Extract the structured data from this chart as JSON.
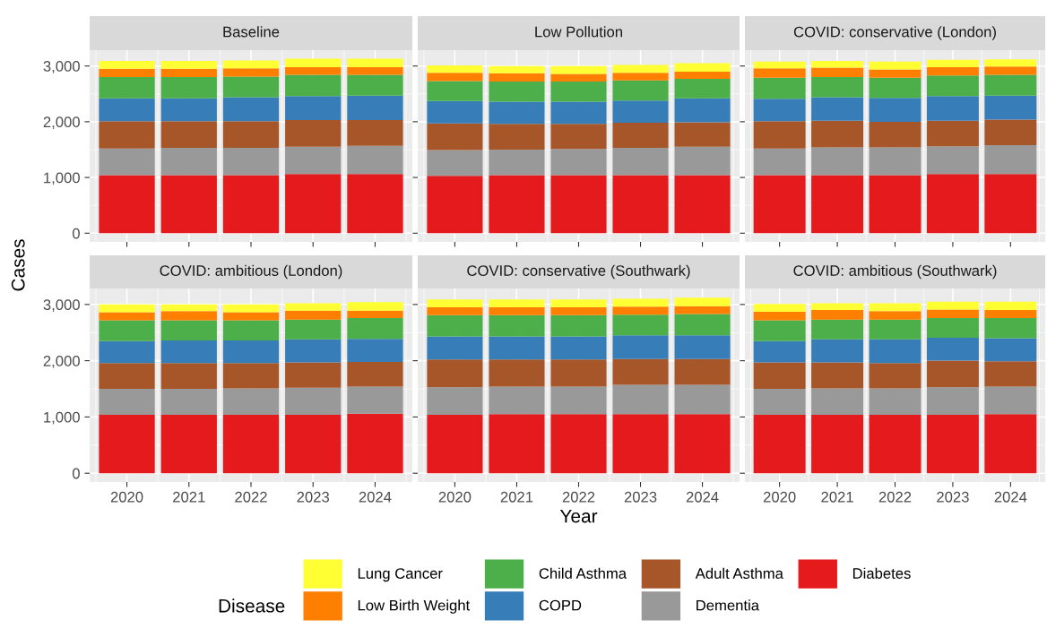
{
  "chart_data": [
    {
      "type": "bar",
      "title": "Baseline",
      "ylabel": "Cases",
      "legend": "bottom",
      "legend_title": "Disease",
      "stacked": true,
      "grid": true,
      "tick_labels": "y",
      "categories": [
        "2020",
        "2021",
        "2022",
        "2023",
        "2024"
      ],
      "ylim": [
        -156,
        3284
      ],
      "yticks": [
        {
          "value": 0,
          "label": "0"
        },
        {
          "value": 1000,
          "label": "1,000"
        },
        {
          "value": 2000,
          "label": "2,000"
        },
        {
          "value": 3000,
          "label": "3,000"
        }
      ],
      "series": [
        {
          "name": "Diabetes",
          "color": "#e41a1c",
          "values": [
            1040,
            1040,
            1040,
            1060,
            1060
          ]
        },
        {
          "name": "Dementia",
          "color": "#999999",
          "values": [
            480,
            490,
            490,
            490,
            510
          ]
        },
        {
          "name": "Adult Asthma",
          "color": "#a65628",
          "values": [
            490,
            480,
            480,
            480,
            460
          ]
        },
        {
          "name": "COPD",
          "color": "#377eb8",
          "values": [
            410,
            410,
            430,
            430,
            440
          ]
        },
        {
          "name": "Child Asthma",
          "color": "#4daf4a",
          "values": [
            380,
            380,
            370,
            380,
            370
          ]
        },
        {
          "name": "Low Birth Weight",
          "color": "#ff7f00",
          "values": [
            150,
            150,
            150,
            140,
            140
          ]
        },
        {
          "name": "Lung Cancer",
          "color": "#ffff33",
          "values": [
            140,
            140,
            140,
            150,
            150
          ]
        }
      ]
    },
    {
      "type": "bar",
      "title": "Low Pollution",
      "stacked": true,
      "grid": true,
      "tick_labels": false,
      "categories": [
        "2020",
        "2021",
        "2022",
        "2023",
        "2024"
      ],
      "ylim": [
        -156,
        3284
      ],
      "yticks": [
        {
          "value": 0,
          "label": null
        },
        {
          "value": 1000,
          "label": null
        },
        {
          "value": 2000,
          "label": null
        },
        {
          "value": 3000,
          "label": null
        }
      ],
      "series": [
        {
          "color": "#e41a1c",
          "values": [
            1030,
            1040,
            1040,
            1040,
            1040
          ]
        },
        {
          "color": "#999999",
          "values": [
            460,
            460,
            470,
            490,
            510
          ]
        },
        {
          "color": "#a65628",
          "values": [
            480,
            460,
            450,
            450,
            440
          ]
        },
        {
          "color": "#377eb8",
          "values": [
            400,
            400,
            400,
            400,
            430
          ]
        },
        {
          "color": "#4daf4a",
          "values": [
            360,
            360,
            360,
            360,
            350
          ]
        },
        {
          "color": "#ff7f00",
          "values": [
            150,
            150,
            140,
            140,
            130
          ]
        },
        {
          "color": "#ffff33",
          "values": [
            130,
            130,
            140,
            140,
            150
          ]
        }
      ]
    },
    {
      "type": "bar",
      "title": "COVID: conservative (London)",
      "stacked": true,
      "grid": true,
      "tick_labels": false,
      "categories": [
        "2020",
        "2021",
        "2022",
        "2023",
        "2024"
      ],
      "ylim": [
        -156,
        3284
      ],
      "yticks": [
        {
          "value": 0,
          "label": null
        },
        {
          "value": 1000,
          "label": null
        },
        {
          "value": 2000,
          "label": null
        },
        {
          "value": 3000,
          "label": null
        }
      ],
      "series": [
        {
          "color": "#e41a1c",
          "values": [
            1040,
            1040,
            1040,
            1060,
            1060
          ]
        },
        {
          "color": "#999999",
          "values": [
            480,
            500,
            500,
            500,
            520
          ]
        },
        {
          "color": "#a65628",
          "values": [
            490,
            480,
            460,
            460,
            460
          ]
        },
        {
          "color": "#377eb8",
          "values": [
            400,
            420,
            430,
            440,
            430
          ]
        },
        {
          "color": "#4daf4a",
          "values": [
            380,
            360,
            360,
            370,
            370
          ]
        },
        {
          "color": "#ff7f00",
          "values": [
            170,
            170,
            150,
            150,
            150
          ]
        },
        {
          "color": "#ffff33",
          "values": [
            120,
            120,
            140,
            130,
            130
          ]
        }
      ]
    },
    {
      "type": "bar",
      "title": "COVID: ambitious (London)",
      "stacked": true,
      "grid": true,
      "categories": [
        "2020",
        "2021",
        "2022",
        "2023",
        "2024"
      ],
      "ylim": [
        -156,
        3284
      ],
      "yticks": [
        {
          "value": 0,
          "label": "0"
        },
        {
          "value": 1000,
          "label": "1,000"
        },
        {
          "value": 2000,
          "label": "2,000"
        },
        {
          "value": 3000,
          "label": "3,000"
        }
      ],
      "series": [
        {
          "color": "#e41a1c",
          "values": [
            1040,
            1040,
            1040,
            1040,
            1060
          ]
        },
        {
          "color": "#999999",
          "values": [
            460,
            460,
            470,
            480,
            480
          ]
        },
        {
          "color": "#a65628",
          "values": [
            460,
            460,
            450,
            450,
            440
          ]
        },
        {
          "color": "#377eb8",
          "values": [
            390,
            400,
            400,
            410,
            410
          ]
        },
        {
          "color": "#4daf4a",
          "values": [
            370,
            360,
            360,
            350,
            370
          ]
        },
        {
          "color": "#ff7f00",
          "values": [
            140,
            160,
            140,
            160,
            130
          ]
        },
        {
          "color": "#ffff33",
          "values": [
            140,
            120,
            140,
            130,
            150
          ]
        }
      ]
    },
    {
      "type": "bar",
      "title": "COVID: conservative (Southwark)",
      "xlabel": "Year",
      "stacked": true,
      "grid": true,
      "tick_labels": "x",
      "categories": [
        "2020",
        "2021",
        "2022",
        "2023",
        "2024"
      ],
      "ylim": [
        -156,
        3284
      ],
      "yticks": [
        {
          "value": 0,
          "label": null
        },
        {
          "value": 1000,
          "label": null
        },
        {
          "value": 2000,
          "label": null
        },
        {
          "value": 3000,
          "label": null
        }
      ],
      "series": [
        {
          "color": "#e41a1c",
          "values": [
            1040,
            1050,
            1050,
            1050,
            1050
          ]
        },
        {
          "color": "#999999",
          "values": [
            490,
            490,
            490,
            520,
            520
          ]
        },
        {
          "color": "#a65628",
          "values": [
            490,
            480,
            480,
            460,
            460
          ]
        },
        {
          "color": "#377eb8",
          "values": [
            410,
            410,
            410,
            420,
            420
          ]
        },
        {
          "color": "#4daf4a",
          "values": [
            380,
            380,
            380,
            370,
            380
          ]
        },
        {
          "color": "#ff7f00",
          "values": [
            140,
            140,
            140,
            140,
            140
          ]
        },
        {
          "color": "#ffff33",
          "values": [
            140,
            140,
            140,
            140,
            150
          ]
        }
      ]
    },
    {
      "type": "bar",
      "title": "COVID: ambitious (Southwark)",
      "stacked": true,
      "grid": true,
      "tick_labels": "x",
      "categories": [
        "2020",
        "2021",
        "2022",
        "2023",
        "2024"
      ],
      "ylim": [
        -156,
        3284
      ],
      "yticks": [
        {
          "value": 0,
          "label": null
        },
        {
          "value": 1000,
          "label": null
        },
        {
          "value": 2000,
          "label": null
        },
        {
          "value": 3000,
          "label": null
        }
      ],
      "series": [
        {
          "color": "#e41a1c",
          "values": [
            1040,
            1040,
            1040,
            1040,
            1050
          ]
        },
        {
          "color": "#999999",
          "values": [
            460,
            470,
            470,
            490,
            490
          ]
        },
        {
          "color": "#a65628",
          "values": [
            470,
            460,
            450,
            470,
            450
          ]
        },
        {
          "color": "#377eb8",
          "values": [
            380,
            410,
            420,
            410,
            410
          ]
        },
        {
          "color": "#4daf4a",
          "values": [
            370,
            350,
            350,
            350,
            360
          ]
        },
        {
          "color": "#ff7f00",
          "values": [
            150,
            170,
            150,
            150,
            140
          ]
        },
        {
          "color": "#ffff33",
          "values": [
            140,
            120,
            140,
            140,
            150
          ]
        }
      ]
    }
  ]
}
